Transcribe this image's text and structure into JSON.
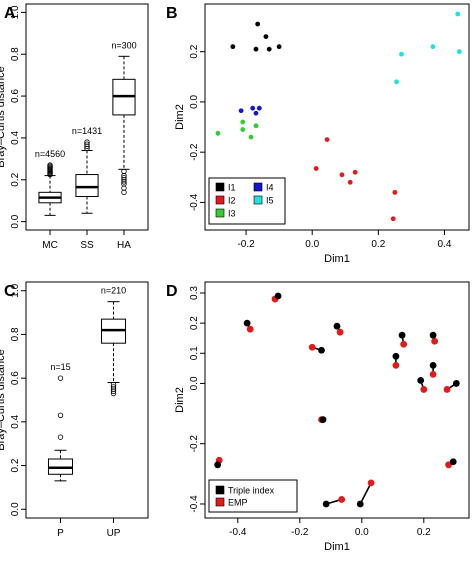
{
  "chart_data": [
    {
      "panel": "A",
      "type": "box",
      "ylabel": "Bray–Curtis distance",
      "ylim": [
        0,
        1
      ],
      "yticks": [
        0.0,
        0.2,
        0.4,
        0.6,
        0.8,
        1.0
      ],
      "categories": [
        "MC",
        "SS",
        "HA"
      ],
      "boxes": [
        {
          "category": "MC",
          "label": "n=4560",
          "whisker_low": 0.03,
          "q1": 0.09,
          "median": 0.115,
          "q3": 0.14,
          "whisker_high": 0.22,
          "outliers": [
            0.225,
            0.23,
            0.235,
            0.24,
            0.245,
            0.25,
            0.255,
            0.26,
            0.265,
            0.27
          ]
        },
        {
          "category": "SS",
          "label": "n=1431",
          "whisker_low": 0.04,
          "q1": 0.12,
          "median": 0.165,
          "q3": 0.225,
          "whisker_high": 0.34,
          "outliers": [
            0.35,
            0.36,
            0.37,
            0.38
          ]
        },
        {
          "category": "HA",
          "label": "n=300",
          "whisker_low": 0.25,
          "q1": 0.51,
          "median": 0.6,
          "q3": 0.68,
          "whisker_high": 0.79,
          "outliers": [
            0.14,
            0.16,
            0.18,
            0.19,
            0.2,
            0.21,
            0.22,
            0.24
          ]
        }
      ]
    },
    {
      "panel": "B",
      "type": "scatter",
      "xlabel": "Dim1",
      "ylabel": "Dim2",
      "xlim": [
        -0.3,
        0.45
      ],
      "ylim": [
        -0.47,
        0.35
      ],
      "xticks": [
        -0.2,
        0.0,
        0.2,
        0.4
      ],
      "yticks": [
        -0.4,
        -0.2,
        0.0,
        0.2
      ],
      "legend": {
        "position": "bottom-left"
      },
      "series": [
        {
          "name": "I1",
          "color": "#000000",
          "points": [
            [
              -0.24,
              0.22
            ],
            [
              -0.165,
              0.31
            ],
            [
              -0.14,
              0.26
            ],
            [
              -0.17,
              0.21
            ],
            [
              -0.13,
              0.21
            ],
            [
              -0.1,
              0.22
            ]
          ]
        },
        {
          "name": "I2",
          "color": "#e31a1c",
          "points": [
            [
              0.045,
              -0.15
            ],
            [
              0.012,
              -0.265
            ],
            [
              0.09,
              -0.29
            ],
            [
              0.115,
              -0.32
            ],
            [
              0.13,
              -0.28
            ],
            [
              0.25,
              -0.36
            ],
            [
              0.245,
              -0.465
            ]
          ]
        },
        {
          "name": "I3",
          "color": "#33cc33",
          "points": [
            [
              -0.285,
              -0.125
            ],
            [
              -0.21,
              -0.08
            ],
            [
              -0.21,
              -0.11
            ],
            [
              -0.17,
              -0.095
            ],
            [
              -0.185,
              -0.14
            ]
          ]
        },
        {
          "name": "I4",
          "color": "#1515cc",
          "points": [
            [
              -0.215,
              -0.035
            ],
            [
              -0.18,
              -0.025
            ],
            [
              -0.16,
              -0.025
            ],
            [
              -0.17,
              -0.045
            ]
          ]
        },
        {
          "name": "I5",
          "color": "#22e0e0",
          "points": [
            [
              0.255,
              0.08
            ],
            [
              0.27,
              0.19
            ],
            [
              0.365,
              0.22
            ],
            [
              0.44,
              0.35
            ],
            [
              0.445,
              0.2
            ]
          ]
        }
      ]
    },
    {
      "panel": "C",
      "type": "box",
      "ylabel": "Bray–Curtis distance",
      "ylim": [
        0,
        1
      ],
      "yticks": [
        0.0,
        0.2,
        0.4,
        0.6,
        0.8,
        1.0
      ],
      "categories": [
        "P",
        "UP"
      ],
      "boxes": [
        {
          "category": "P",
          "label": "n=15",
          "whisker_low": 0.13,
          "q1": 0.16,
          "median": 0.19,
          "q3": 0.23,
          "whisker_high": 0.27,
          "outliers": [
            0.33,
            0.43,
            0.6
          ]
        },
        {
          "category": "UP",
          "label": "n=210",
          "whisker_low": 0.58,
          "q1": 0.76,
          "median": 0.82,
          "q3": 0.87,
          "whisker_high": 0.95,
          "outliers": [
            0.53,
            0.54,
            0.55,
            0.56,
            0.57
          ]
        }
      ]
    },
    {
      "panel": "D",
      "type": "scatter",
      "xlabel": "Dim1",
      "ylabel": "Dim2",
      "xlim": [
        -0.48,
        0.32
      ],
      "ylim": [
        -0.42,
        0.31
      ],
      "xticks": [
        -0.4,
        -0.2,
        0.0,
        0.2
      ],
      "yticks": [
        -0.4,
        -0.2,
        0.0,
        0.1,
        0.2,
        0.3
      ],
      "legend": {
        "position": "bottom-left"
      },
      "series": [
        {
          "name": "Triple index",
          "color": "#000000"
        },
        {
          "name": "EMP",
          "color": "#e31a1c"
        }
      ],
      "pairs": [
        {
          "triple": [
            -0.27,
            0.29
          ],
          "emp": [
            -0.28,
            0.28
          ]
        },
        {
          "triple": [
            -0.37,
            0.2
          ],
          "emp": [
            -0.36,
            0.18
          ]
        },
        {
          "triple": [
            -0.08,
            0.19
          ],
          "emp": [
            -0.07,
            0.17
          ]
        },
        {
          "triple": [
            -0.13,
            0.11
          ],
          "emp": [
            -0.16,
            0.12
          ]
        },
        {
          "triple": [
            0.11,
            0.09
          ],
          "emp": [
            0.11,
            0.06
          ]
        },
        {
          "triple": [
            0.23,
            0.16
          ],
          "emp": [
            0.235,
            0.14
          ]
        },
        {
          "triple": [
            0.13,
            0.16
          ],
          "emp": [
            0.135,
            0.13
          ]
        },
        {
          "triple": [
            0.23,
            0.06
          ],
          "emp": [
            0.23,
            0.03
          ]
        },
        {
          "triple": [
            0.19,
            0.01
          ],
          "emp": [
            0.2,
            -0.02
          ]
        },
        {
          "triple": [
            0.305,
            0.0
          ],
          "emp": [
            0.275,
            -0.02
          ]
        },
        {
          "triple": [
            -0.125,
            -0.12
          ],
          "emp": [
            -0.13,
            -0.12
          ]
        },
        {
          "triple": [
            -0.465,
            -0.27
          ],
          "emp": [
            -0.46,
            -0.255
          ]
        },
        {
          "triple": [
            0.295,
            -0.26
          ],
          "emp": [
            0.28,
            -0.27
          ]
        },
        {
          "triple": [
            -0.115,
            -0.4
          ],
          "emp": [
            -0.065,
            -0.385
          ]
        },
        {
          "triple": [
            -0.005,
            -0.4
          ],
          "emp": [
            0.03,
            -0.33
          ]
        }
      ]
    }
  ]
}
